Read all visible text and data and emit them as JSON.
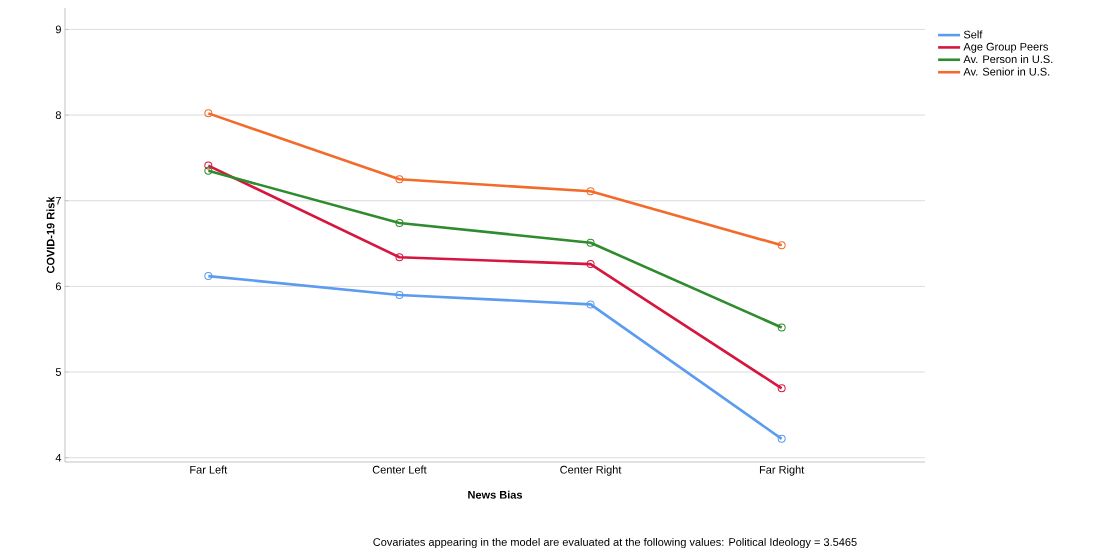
{
  "chart_data": {
    "type": "line",
    "xlabel": "News Bias",
    "ylabel": "COVID-19 Risk",
    "categories": [
      "Far Left",
      "Center Left",
      "Center Right",
      "Far Right"
    ],
    "series": [
      {
        "name": "Self",
        "color": "#5b9bf0",
        "values": [
          6.12,
          5.9,
          5.79,
          4.22
        ]
      },
      {
        "name": "Age Group Peers",
        "color": "#d6163e",
        "values": [
          7.41,
          6.34,
          6.26,
          4.81
        ]
      },
      {
        "name": "Av. Person in U.S.",
        "color": "#2e8b2e",
        "values": [
          7.35,
          6.74,
          6.51,
          5.52
        ]
      },
      {
        "name": "Av. Senior in U.S.",
        "color": "#f26b2a",
        "values": [
          8.02,
          7.25,
          7.11,
          6.48
        ]
      }
    ],
    "ylim": [
      3.95,
      9.25
    ],
    "yticks": [
      4,
      5,
      6,
      7,
      8,
      9
    ],
    "grid": "y",
    "legend": "right",
    "marker": "circle",
    "annotations": [
      "Covariates appearing in the model are evaluated at the following values: Political Ideology = 3.5465"
    ]
  }
}
